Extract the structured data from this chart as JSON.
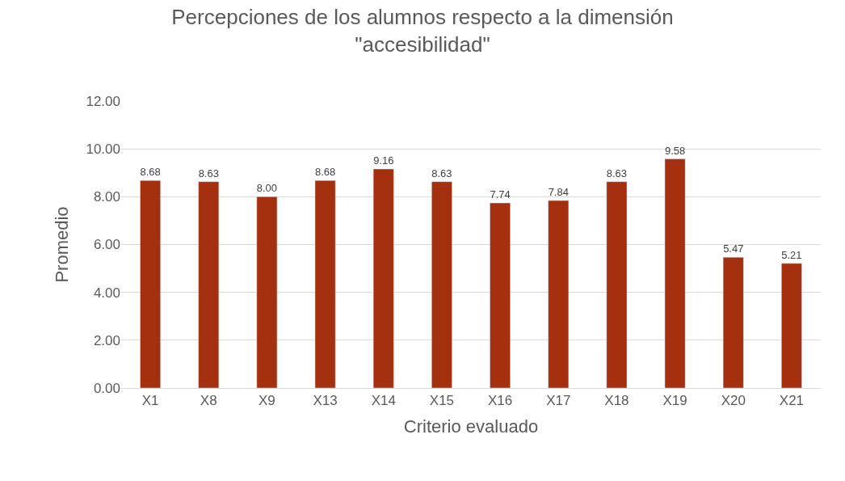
{
  "chart_data": {
    "type": "bar",
    "title": "Percepciones de los alumnos respecto a la dimensión \"accesibilidad\"",
    "xlabel": "Criterio evaluado",
    "ylabel": "Promedio",
    "categories": [
      "X1",
      "X8",
      "X9",
      "X13",
      "X14",
      "X15",
      "X16",
      "X17",
      "X18",
      "X19",
      "X20",
      "X21"
    ],
    "values": [
      8.68,
      8.63,
      8.0,
      8.68,
      9.16,
      8.63,
      7.74,
      7.84,
      8.63,
      9.58,
      5.47,
      5.21
    ],
    "color": "#a5300f",
    "ylim": [
      0,
      12
    ],
    "yticks": [
      {
        "value": 0,
        "label": "0.00"
      },
      {
        "value": 2,
        "label": "2.00"
      },
      {
        "value": 4,
        "label": "4.00"
      },
      {
        "value": 6,
        "label": "6.00"
      },
      {
        "value": 8,
        "label": "8.00"
      },
      {
        "value": 10,
        "label": "10.00"
      },
      {
        "value": 12,
        "label": "12.00"
      }
    ],
    "value_labels": [
      "8.68",
      "8.63",
      "8.00",
      "8.68",
      "9.16",
      "8.63",
      "7.74",
      "7.84",
      "8.63",
      "9.58",
      "5.47",
      "5.21"
    ],
    "grid": "y",
    "legend": false
  }
}
